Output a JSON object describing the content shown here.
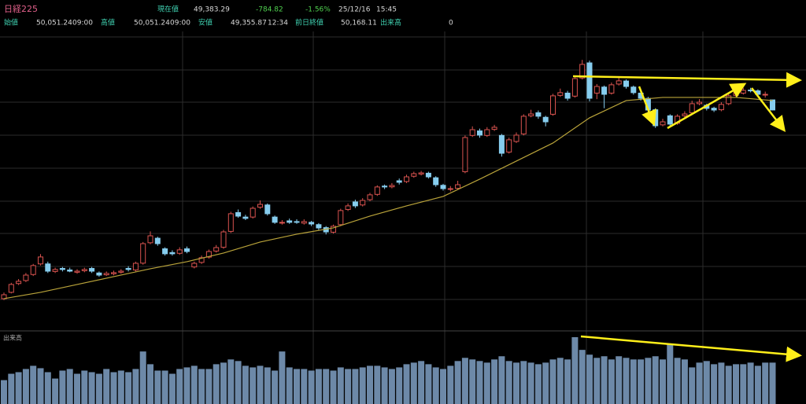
{
  "header": {
    "name": "日経225",
    "current_label": "現在値",
    "current": "49,383.29",
    "change": "-784.82",
    "change_pct": "-1.56%",
    "date": "25/12/16",
    "time": "15:45",
    "open_label": "始値",
    "open": "50,051.24",
    "open_time": "09:00",
    "high_label": "高値",
    "high": "50,051.24",
    "high_time": "09:00",
    "low_label": "安値",
    "low": "49,355.87",
    "low_time": "12:34",
    "prev_label": "前日終値",
    "prev": "50,168.11",
    "volume_label": "出来高",
    "volume": "0"
  },
  "chart_data": {
    "type": "candlestick",
    "grid": true,
    "up_color": "#d9534f",
    "down_color": "#86cdee",
    "ma_color": "#b9a33a",
    "volume_color": "#6d89a8",
    "volume_axis_label": "出来高",
    "ylim": [
      36640,
      54580
    ],
    "vlim": [
      0,
      4000
    ],
    "ohlc": [
      [
        36900,
        37300,
        36800,
        37160
      ],
      [
        37320,
        37950,
        37250,
        37840
      ],
      [
        37900,
        38200,
        37800,
        38050
      ],
      [
        38100,
        38600,
        38000,
        38460
      ],
      [
        38500,
        39200,
        38400,
        39090
      ],
      [
        39200,
        39850,
        39100,
        39660
      ],
      [
        39200,
        39350,
        38600,
        38720
      ],
      [
        38700,
        38950,
        38600,
        38830
      ],
      [
        38900,
        39000,
        38700,
        38830
      ],
      [
        38800,
        38950,
        38650,
        38720
      ],
      [
        38650,
        38850,
        38550,
        38720
      ],
      [
        38750,
        38950,
        38650,
        38830
      ],
      [
        38900,
        39000,
        38600,
        38720
      ],
      [
        38600,
        38700,
        38350,
        38460
      ],
      [
        38480,
        38700,
        38400,
        38570
      ],
      [
        38550,
        38750,
        38450,
        38620
      ],
      [
        38650,
        38850,
        38550,
        38720
      ],
      [
        38900,
        39050,
        38700,
        38830
      ],
      [
        38800,
        39350,
        38700,
        39240
      ],
      [
        39250,
        40650,
        39150,
        40540
      ],
      [
        40600,
        41350,
        40500,
        41060
      ],
      [
        40900,
        41000,
        40400,
        40540
      ],
      [
        40200,
        40300,
        39750,
        39870
      ],
      [
        39950,
        40100,
        39750,
        39870
      ],
      [
        39900,
        40300,
        39800,
        40130
      ],
      [
        40200,
        40350,
        39900,
        40020
      ],
      [
        39000,
        39350,
        38900,
        39240
      ],
      [
        39300,
        39750,
        39200,
        39610
      ],
      [
        39650,
        40150,
        39550,
        40020
      ],
      [
        40050,
        40450,
        39950,
        40280
      ],
      [
        40300,
        41450,
        40200,
        41320
      ],
      [
        41350,
        42650,
        41250,
        42520
      ],
      [
        42600,
        42800,
        42250,
        42360
      ],
      [
        42300,
        42450,
        42100,
        42210
      ],
      [
        42300,
        43000,
        42200,
        42880
      ],
      [
        42950,
        43400,
        42850,
        43140
      ],
      [
        43100,
        43200,
        42400,
        42520
      ],
      [
        42300,
        42400,
        41850,
        41950
      ],
      [
        41900,
        42100,
        41800,
        41950
      ],
      [
        42050,
        42200,
        41850,
        41950
      ],
      [
        42000,
        42150,
        41850,
        41950
      ],
      [
        41900,
        42150,
        41800,
        42000
      ],
      [
        41950,
        42050,
        41700,
        41840
      ],
      [
        41800,
        41900,
        41450,
        41580
      ],
      [
        41600,
        41700,
        41150,
        41320
      ],
      [
        41300,
        41800,
        41200,
        41690
      ],
      [
        41800,
        42850,
        41700,
        42730
      ],
      [
        42800,
        43200,
        42700,
        43040
      ],
      [
        43300,
        43450,
        42900,
        43040
      ],
      [
        43100,
        43550,
        43000,
        43400
      ],
      [
        43450,
        43900,
        43350,
        43770
      ],
      [
        43800,
        44400,
        43700,
        44290
      ],
      [
        44350,
        44450,
        44150,
        44290
      ],
      [
        44300,
        44550,
        44200,
        44390
      ],
      [
        44700,
        44850,
        44450,
        44600
      ],
      [
        44650,
        45100,
        44550,
        44960
      ],
      [
        45000,
        45300,
        44900,
        45170
      ],
      [
        45150,
        45350,
        45050,
        45220
      ],
      [
        45200,
        45300,
        44850,
        44960
      ],
      [
        44900,
        45000,
        44300,
        44440
      ],
      [
        44400,
        44500,
        44050,
        44180
      ],
      [
        44150,
        44350,
        44000,
        44180
      ],
      [
        44200,
        44700,
        44100,
        44440
      ],
      [
        45300,
        47700,
        45200,
        47560
      ],
      [
        47700,
        48300,
        47600,
        48080
      ],
      [
        48000,
        48150,
        47550,
        47720
      ],
      [
        47700,
        48250,
        47600,
        48080
      ],
      [
        48100,
        48400,
        48000,
        48240
      ],
      [
        47700,
        47800,
        46300,
        46520
      ],
      [
        46600,
        47550,
        46500,
        47410
      ],
      [
        47300,
        47900,
        47200,
        47720
      ],
      [
        47800,
        49100,
        47700,
        48970
      ],
      [
        49000,
        49400,
        48900,
        49120
      ],
      [
        49200,
        49350,
        48800,
        48970
      ],
      [
        48900,
        49000,
        48300,
        48600
      ],
      [
        49100,
        50450,
        49000,
        50320
      ],
      [
        50350,
        50800,
        50250,
        50530
      ],
      [
        50500,
        50650,
        50000,
        50160
      ],
      [
        50300,
        51600,
        50200,
        51460
      ],
      [
        51500,
        52700,
        51400,
        52400
      ],
      [
        52500,
        52650,
        49950,
        50160
      ],
      [
        50500,
        51100,
        50100,
        50940
      ],
      [
        50900,
        51000,
        49500,
        50420
      ],
      [
        50500,
        51200,
        50400,
        51050
      ],
      [
        51100,
        51500,
        51000,
        51310
      ],
      [
        51300,
        51400,
        50800,
        50940
      ],
      [
        50900,
        51000,
        50400,
        50530
      ],
      [
        50500,
        50600,
        50000,
        50160
      ],
      [
        50150,
        50250,
        49200,
        49380
      ],
      [
        49400,
        49500,
        48200,
        48340
      ],
      [
        48400,
        48800,
        48300,
        48600
      ],
      [
        49000,
        49100,
        48300,
        48450
      ],
      [
        48500,
        49100,
        48400,
        48970
      ],
      [
        49000,
        49300,
        48900,
        49120
      ],
      [
        49200,
        50000,
        49100,
        49800
      ],
      [
        49800,
        50100,
        49700,
        49900
      ],
      [
        49700,
        49800,
        49350,
        49490
      ],
      [
        49500,
        49600,
        49250,
        49380
      ],
      [
        49400,
        49900,
        49300,
        49750
      ],
      [
        49800,
        50450,
        49700,
        50320
      ],
      [
        50350,
        50700,
        50250,
        50530
      ],
      [
        50500,
        50850,
        50400,
        50680
      ],
      [
        50700,
        50850,
        50550,
        50680
      ],
      [
        50650,
        50750,
        50300,
        50420
      ],
      [
        50400,
        50600,
        50200,
        50420
      ],
      [
        50051.24,
        50051.24,
        49355.87,
        49383.29
      ]
    ],
    "volume": [
      1350,
      1710,
      1800,
      1980,
      2160,
      2025,
      1800,
      1440,
      1890,
      1980,
      1710,
      1890,
      1800,
      1710,
      1980,
      1800,
      1890,
      1800,
      1980,
      2970,
      2250,
      1890,
      1890,
      1710,
      1980,
      2070,
      2160,
      1980,
      1980,
      2250,
      2340,
      2520,
      2430,
      2160,
      2070,
      2160,
      2070,
      1890,
      2970,
      2070,
      1980,
      1980,
      1890,
      1980,
      1980,
      1890,
      2070,
      1980,
      1980,
      2070,
      2160,
      2160,
      2070,
      1980,
      2070,
      2250,
      2340,
      2430,
      2250,
      2070,
      1980,
      2160,
      2430,
      2610,
      2520,
      2430,
      2340,
      2520,
      2700,
      2430,
      2340,
      2430,
      2340,
      2250,
      2340,
      2520,
      2610,
      2520,
      3780,
      3060,
      2790,
      2610,
      2700,
      2520,
      2700,
      2610,
      2520,
      2520,
      2610,
      2700,
      2520,
      3420,
      2610,
      2520,
      2070,
      2340,
      2430,
      2250,
      2340,
      2160,
      2250,
      2250,
      2340,
      2160,
      2340,
      2340
    ],
    "ma": {
      "x": [
        0,
        5,
        10,
        15,
        20,
        25,
        30,
        35,
        40,
        45,
        50,
        55,
        60,
        65,
        70,
        75,
        80,
        85,
        90,
        95,
        100,
        105
      ],
      "values": [
        36903,
        37319,
        37839,
        38359,
        38879,
        39347,
        39919,
        40647,
        41167,
        41583,
        42363,
        43039,
        43663,
        44807,
        46003,
        47199,
        48863,
        50007,
        50215,
        50215,
        50215,
        50007
      ]
    }
  }
}
